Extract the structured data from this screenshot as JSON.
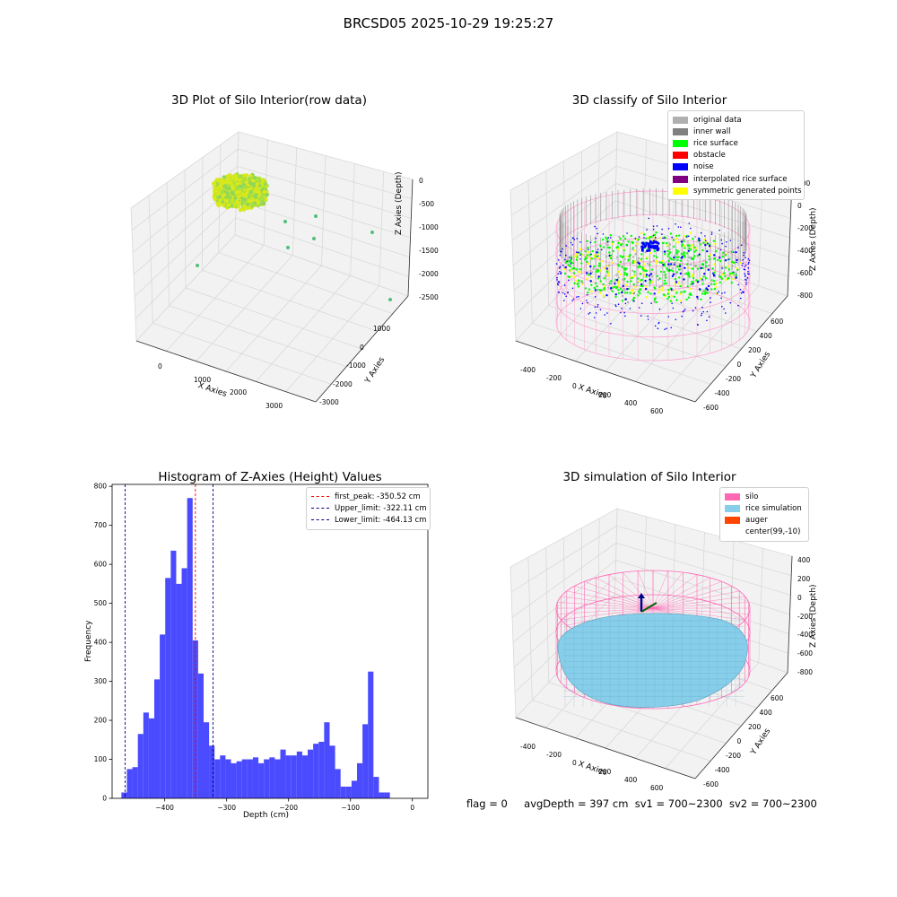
{
  "suptitle": "BRCSD05 2025-10-29 19:25:27",
  "status": {
    "flag": "flag = 0",
    "avg_depth": "avgDepth = 397 cm",
    "sv1": "sv1 = 700~2300",
    "sv2": "sv2 = 700~2300"
  },
  "colors": {
    "hist_bar": "#4a4aff",
    "first_peak": "#ff0000",
    "limits": "#00008b",
    "silo": "#ff69b4",
    "rice_sim": "#87ceeb",
    "auger": "#ff4500",
    "inner_wall": "#808080",
    "rice_surface": "#00ff00",
    "noise": "#0000ff",
    "symmetric": "#ffff00"
  },
  "chart_data": [
    {
      "type": "scatter3d",
      "title": "3D Plot of Silo Interior(row data)",
      "xlabel": "X Axies",
      "ylabel": "Y Axies",
      "zlabel": "Z Axies (Depth)",
      "xticks": [
        "0",
        "1000",
        "2000",
        "3000"
      ],
      "yticks": [
        "1000",
        "0",
        "-1000",
        "-2000",
        "-3000"
      ],
      "zticks": [
        "0",
        "-500",
        "-1000",
        "-1500",
        "-2000",
        "-2500"
      ],
      "outliers": [
        {
          "x": 300,
          "y": 0,
          "z": -400
        },
        {
          "x": 1400,
          "y": -300,
          "z": -700
        },
        {
          "x": 1700,
          "y": -1800,
          "z": -500
        },
        {
          "x": 2300,
          "y": -1200,
          "z": -1700
        },
        {
          "x": 2200,
          "y": -2000,
          "z": -1400
        },
        {
          "x": 2900,
          "y": -2800,
          "z": -1500
        },
        {
          "x": 3400,
          "y": -3000,
          "z": -2600
        }
      ]
    },
    {
      "type": "scatter3d",
      "title": "3D classify of Silo Interior",
      "xlabel": "X Axies",
      "ylabel": "Y Axies",
      "zlabel": "Z Axies (Depth)",
      "xticks": [
        "-400",
        "-200",
        "0",
        "200",
        "400",
        "600"
      ],
      "yticks": [
        "600",
        "400",
        "200",
        "0",
        "-200",
        "-400",
        "-600"
      ],
      "zticks": [
        "200",
        "0",
        "-200",
        "-400",
        "-600",
        "-800"
      ],
      "legend": [
        {
          "label": "original data",
          "color": "#b0b0b0"
        },
        {
          "label": "inner wall",
          "color": "#808080"
        },
        {
          "label": "rice surface",
          "color": "#00ff00"
        },
        {
          "label": "obstacle",
          "color": "#ff0000"
        },
        {
          "label": "noise",
          "color": "#0000ff"
        },
        {
          "label": "interpolated rice surface",
          "color": "#800080"
        },
        {
          "label": "symmetric generated points",
          "color": "#ffff00"
        }
      ]
    },
    {
      "type": "bar",
      "title": "Histogram of Z-Axies (Height) Values",
      "xlabel": "Depth (cm)",
      "ylabel": "Frequency",
      "xlim": [
        -485,
        25
      ],
      "ylim": [
        0,
        805
      ],
      "bin_start": -470,
      "bin_width": 8.85,
      "values": [
        15,
        75,
        80,
        165,
        220,
        205,
        305,
        420,
        565,
        635,
        550,
        590,
        770,
        405,
        320,
        195,
        135,
        100,
        110,
        100,
        90,
        95,
        100,
        100,
        105,
        90,
        100,
        105,
        100,
        125,
        110,
        110,
        120,
        110,
        125,
        140,
        145,
        195,
        135,
        75,
        30,
        30,
        45,
        90,
        190,
        325,
        55,
        15,
        15
      ],
      "xticks": [
        -400,
        -300,
        -200,
        -100,
        0
      ],
      "xtick_labels": [
        "−400",
        "−300",
        "−200",
        "−100",
        "0"
      ],
      "yticks": [
        0,
        100,
        200,
        300,
        400,
        500,
        600,
        700,
        800
      ],
      "lines": [
        {
          "label": "first_peak: -350.52 cm",
          "x": -350.52,
          "color": "#ff0000"
        },
        {
          "label": "Upper_limit: -322.11 cm",
          "x": -322.11,
          "color": "#00008b"
        },
        {
          "label": "Lower_limit: -464.13 cm",
          "x": -464.13,
          "color": "#00008b"
        }
      ]
    },
    {
      "type": "surface3d",
      "title": "3D simulation of Silo Interior",
      "xlabel": "X Axies",
      "ylabel": "Y Axies",
      "zlabel": "Z Axies (Depth)",
      "xticks": [
        "-400",
        "-200",
        "0",
        "200",
        "400",
        "600"
      ],
      "yticks": [
        "600",
        "400",
        "200",
        "0",
        "-200",
        "-400",
        "-600"
      ],
      "zticks": [
        "400",
        "200",
        "0",
        "-200",
        "-400",
        "-600",
        "-800"
      ],
      "legend": [
        {
          "label": "silo",
          "color": "#ff69b4"
        },
        {
          "label": "rice simulation",
          "color": "#87ceeb"
        },
        {
          "label": "auger",
          "color": "#ff4500"
        },
        {
          "label": "center(99,-10)",
          "color": "#ffffff"
        }
      ]
    }
  ]
}
